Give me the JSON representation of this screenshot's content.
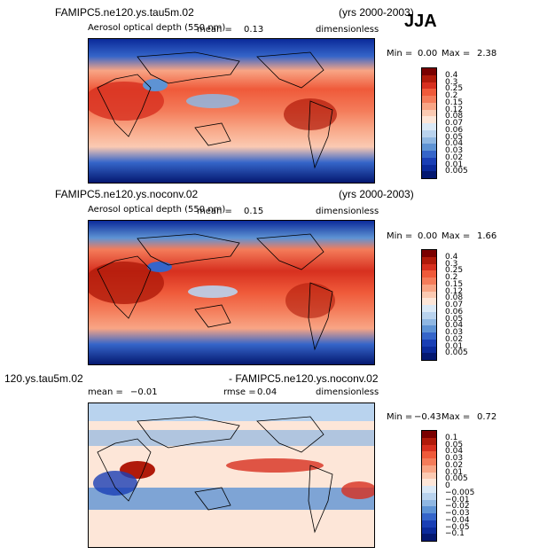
{
  "season": "JJA",
  "panels": [
    {
      "title_left": "FAMIPC5.ne120.ys.tau5m.02",
      "title_right": "(yrs 2000-2003)",
      "variable": "Aerosol optical depth (550 nm)",
      "mean_label": "mean =",
      "mean_value": "0.13",
      "rmse_label": "",
      "rmse_value": "",
      "units": "dimensionless",
      "min_label": "Min =",
      "min_value": "0.00",
      "max_label": "Max =",
      "max_value": "2.38"
    },
    {
      "title_left": "FAMIPC5.ne120.ys.noconv.02",
      "title_right": "(yrs 2000-2003)",
      "variable": "Aerosol optical depth (550 nm)",
      "mean_label": "mean =",
      "mean_value": "0.15",
      "rmse_label": "",
      "rmse_value": "",
      "units": "dimensionless",
      "min_label": "Min =",
      "min_value": "0.00",
      "max_label": "Max =",
      "max_value": "1.66"
    },
    {
      "title_left": "120.ys.tau5m.02",
      "title_right": "- FAMIPC5.ne120.ys.noconv.02",
      "variable": "",
      "mean_label": "mean =",
      "mean_value": "−0.01",
      "rmse_label": "rmse =",
      "rmse_value": "0.04",
      "units": "dimensionless",
      "min_label": "Min =",
      "min_value": "−0.43",
      "max_label": "Max =",
      "max_value": "0.72"
    }
  ],
  "chart_data": [
    {
      "type": "heatmap",
      "colorbar_labels": [
        "0.4",
        "0.3",
        "0.25",
        "0.2",
        "0.15",
        "0.12",
        "0.08",
        "0.07",
        "0.06",
        "0.05",
        "0.04",
        "0.03",
        "0.02",
        "0.01",
        "0.005"
      ],
      "colorbar_colors": [
        "#7a0000",
        "#b01a0a",
        "#d7301f",
        "#ef5a3a",
        "#f47c5a",
        "#f8a585",
        "#fbcab2",
        "#fde6d8",
        "#dbe9f6",
        "#b9d3ee",
        "#8fb7e2",
        "#5e93d4",
        "#3565c9",
        "#1a3fb5",
        "#0b2a9a",
        "#041870"
      ]
    },
    {
      "type": "heatmap",
      "colorbar_labels": [
        "0.4",
        "0.3",
        "0.25",
        "0.2",
        "0.15",
        "0.12",
        "0.08",
        "0.07",
        "0.06",
        "0.05",
        "0.04",
        "0.03",
        "0.02",
        "0.01",
        "0.005"
      ],
      "colorbar_colors": [
        "#7a0000",
        "#b01a0a",
        "#d7301f",
        "#ef5a3a",
        "#f47c5a",
        "#f8a585",
        "#fbcab2",
        "#fde6d8",
        "#dbe9f6",
        "#b9d3ee",
        "#8fb7e2",
        "#5e93d4",
        "#3565c9",
        "#1a3fb5",
        "#0b2a9a",
        "#041870"
      ]
    },
    {
      "type": "heatmap",
      "colorbar_labels": [
        "0.1",
        "0.05",
        "0.04",
        "0.03",
        "0.02",
        "0.01",
        "0.005",
        "0",
        "−0.005",
        "−0.01",
        "−0.02",
        "−0.03",
        "−0.04",
        "−0.05",
        "−0.1"
      ],
      "colorbar_colors": [
        "#7a0000",
        "#b01a0a",
        "#d7301f",
        "#ef5a3a",
        "#f47c5a",
        "#f8a585",
        "#fbcab2",
        "#fde6d8",
        "#dbe9f6",
        "#b9d3ee",
        "#8fb7e2",
        "#5e93d4",
        "#3565c9",
        "#1a3fb5",
        "#0b2a9a",
        "#041870"
      ]
    }
  ]
}
